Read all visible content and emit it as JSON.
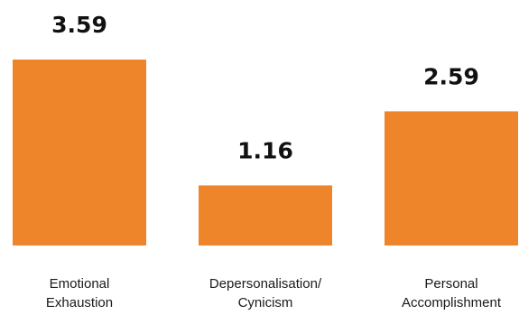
{
  "chart_data": {
    "type": "bar",
    "title": "",
    "xlabel": "",
    "ylabel": "",
    "categories": [
      [
        "Emotional",
        "Exhaustion"
      ],
      [
        "Depersonalisation/",
        "Cynicism"
      ],
      [
        "Personal",
        "Accomplishment"
      ]
    ],
    "values": [
      3.59,
      1.16,
      2.59
    ],
    "value_labels": [
      "3.59",
      "1.16",
      "2.59"
    ],
    "bar_color": "#EE852B",
    "ylim": [
      0,
      3.59
    ],
    "grid": false,
    "legend": "none"
  }
}
